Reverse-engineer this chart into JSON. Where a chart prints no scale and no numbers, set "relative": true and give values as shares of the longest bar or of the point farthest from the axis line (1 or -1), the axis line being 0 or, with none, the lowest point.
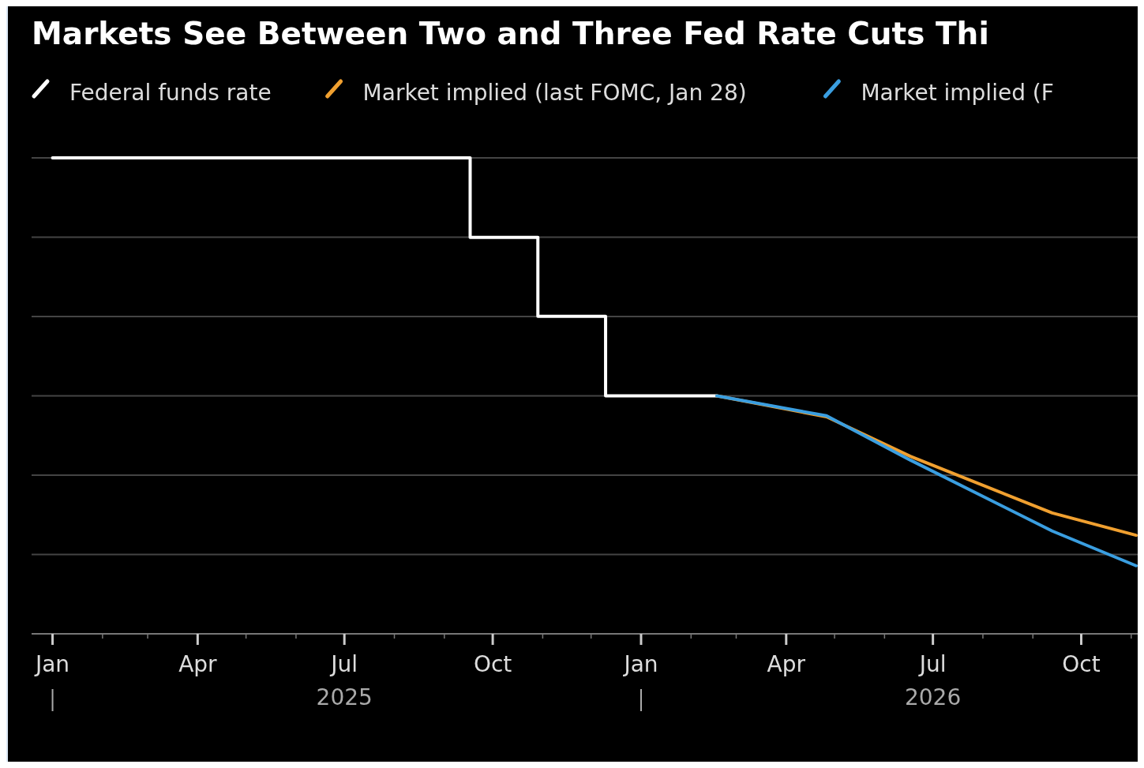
{
  "chart_data": {
    "type": "line",
    "title": "Markets See Between Two and Three Fed Rate Cuts Thi",
    "relative": true,
    "grid": "y",
    "legend": "top left",
    "xlim": [
      "2024-12-19",
      "2026-11-05"
    ],
    "xticks": [
      {
        "value": "2025-01-01",
        "label": "Jan"
      },
      {
        "value": "2025-04-01",
        "label": "Apr"
      },
      {
        "value": "2025-07-01",
        "label": "Jul\n2025"
      },
      {
        "value": "2025-10-01",
        "label": "Oct"
      },
      {
        "value": "2026-01-01",
        "label": "Jan"
      },
      {
        "value": "2026-04-01",
        "label": "Apr"
      },
      {
        "value": "2026-07-01",
        "label": "Jul\n2026"
      },
      {
        "value": "2026-10-01",
        "label": "Oct"
      }
    ],
    "series": [
      {
        "name": "Federal funds rate",
        "type": "step",
        "color": "#ffffff",
        "x": [
          "2025-01-01",
          "2025-09-17",
          "2025-10-29",
          "2025-12-10",
          "2026-02-17"
        ],
        "values": [
          1,
          0.833,
          0.667,
          0.5,
          0.5
        ]
      },
      {
        "name": "Market implied (last FOMC, Jan 28)",
        "type": "line",
        "color": "#f0a030",
        "x": [
          "2026-02-17",
          "2026-04-26",
          "2026-06-17",
          "2026-09-13",
          "2026-11-04"
        ],
        "values": [
          0.5,
          0.456,
          0.373,
          0.254,
          0.207
        ]
      },
      {
        "name": "Market implied (F",
        "type": "line",
        "color": "#3a9ee0",
        "x": [
          "2026-02-17",
          "2026-04-26",
          "2026-06-17",
          "2026-09-13",
          "2026-11-04"
        ],
        "values": [
          0.5,
          0.458,
          0.365,
          0.216,
          0.143
        ]
      }
    ]
  }
}
